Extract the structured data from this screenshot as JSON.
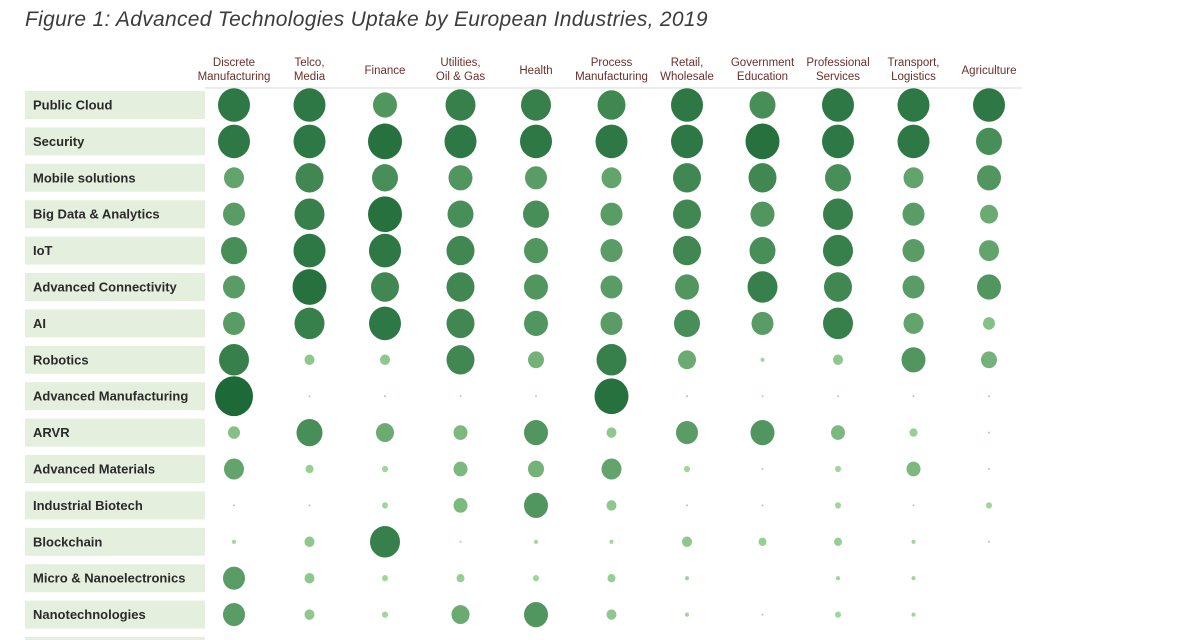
{
  "chart_data": {
    "type": "bubble-matrix",
    "title": "Figure 1: Advanced Technologies Uptake by European Industries, 2019",
    "columns": [
      [
        "Discrete",
        "Manufacturing"
      ],
      [
        "Telco,",
        "Media"
      ],
      [
        "Finance"
      ],
      [
        "Utilities,",
        "Oil & Gas"
      ],
      [
        "Health"
      ],
      [
        "Process",
        "Manufacturing"
      ],
      [
        "Retail,",
        "Wholesale"
      ],
      [
        "Government",
        "Education"
      ],
      [
        "Professional",
        "Services"
      ],
      [
        "Transport,",
        "Logistics"
      ],
      [
        "Agriculture"
      ]
    ],
    "rows": [
      {
        "label": "Public Cloud",
        "values": [
          16,
          16,
          12,
          15,
          15,
          14,
          16,
          13,
          16,
          16,
          16
        ]
      },
      {
        "label": "Security",
        "values": [
          16,
          16,
          17,
          16,
          16,
          16,
          16,
          17,
          16,
          16,
          13
        ]
      },
      {
        "label": "Mobile solutions",
        "values": [
          10,
          14,
          13,
          12,
          11,
          10,
          14,
          14,
          13,
          10,
          12
        ]
      },
      {
        "label": "Big Data & Analytics",
        "values": [
          11,
          15,
          17,
          13,
          13,
          11,
          14,
          12,
          15,
          11,
          9
        ]
      },
      {
        "label": "IoT",
        "values": [
          13,
          16,
          16,
          14,
          12,
          11,
          14,
          13,
          15,
          11,
          10
        ]
      },
      {
        "label": "Advanced Connectivity",
        "values": [
          11,
          17,
          14,
          14,
          12,
          11,
          12,
          15,
          14,
          11,
          12
        ]
      },
      {
        "label": "AI",
        "values": [
          11,
          15,
          16,
          14,
          12,
          11,
          13,
          11,
          15,
          10,
          6
        ]
      },
      {
        "label": "Robotics",
        "values": [
          15,
          5,
          5,
          14,
          8,
          15,
          9,
          2,
          5,
          12,
          8
        ]
      },
      {
        "label": "Advanced Manufacturing",
        "values": [
          19,
          1,
          1,
          1,
          1,
          17,
          1,
          1,
          1,
          1,
          1
        ]
      },
      {
        "label": "ARVR",
        "values": [
          6,
          13,
          9,
          7,
          12,
          5,
          11,
          12,
          7,
          4,
          1
        ]
      },
      {
        "label": "Advanced Materials",
        "values": [
          10,
          4,
          3,
          7,
          8,
          10,
          3,
          1,
          3,
          7,
          1
        ]
      },
      {
        "label": "Industrial Biotech",
        "values": [
          1,
          1,
          3,
          7,
          12,
          5,
          1,
          1,
          3,
          1,
          3
        ]
      },
      {
        "label": "Blockchain",
        "values": [
          2,
          5,
          15,
          1,
          2,
          2,
          5,
          4,
          4,
          2,
          1
        ]
      },
      {
        "label": "Micro & Nanoelectronics",
        "values": [
          11,
          5,
          3,
          4,
          3,
          4,
          2,
          0,
          2,
          2,
          0
        ]
      },
      {
        "label": "Nanotechnologies",
        "values": [
          11,
          5,
          3,
          9,
          12,
          5,
          2,
          1,
          3,
          2,
          0
        ]
      }
    ],
    "value_scale": "relative uptake (bubble size and shade)",
    "colors": {
      "low": "#9fd699",
      "high": "#1d6a38",
      "label_bg": "#e4f0dd",
      "header_text": "#6b2f2a"
    },
    "legend": "none",
    "grid": false
  }
}
